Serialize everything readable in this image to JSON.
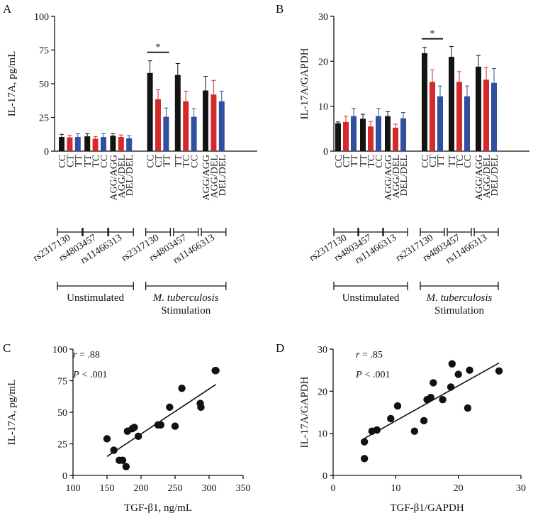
{
  "colors": {
    "black": "#141414",
    "red": "#d42a2a",
    "blue": "#2f4f9f",
    "axis": "#111111"
  },
  "chart_data": [
    {
      "panel": "A",
      "type": "bar",
      "ylabel": "IL-17A, pg/mL",
      "ylim": [
        0,
        100
      ],
      "yticks": [
        0,
        25,
        50,
        75,
        100
      ],
      "categories": [
        "CC",
        "CT",
        "TT",
        "TT",
        "TC",
        "CC",
        "AGG/AGG",
        "AGG/DEL",
        "DEL/DEL",
        "CC",
        "CT",
        "TT",
        "TT",
        "TC",
        "CC",
        "AGG/AGG",
        "AGG/DEL",
        "DEL/DEL"
      ],
      "bar_colors": [
        "black",
        "red",
        "blue",
        "black",
        "red",
        "blue",
        "black",
        "red",
        "blue",
        "black",
        "red",
        "blue",
        "black",
        "red",
        "blue",
        "black",
        "red",
        "blue"
      ],
      "values": [
        10.5,
        10.2,
        10.5,
        11,
        9.2,
        10.5,
        11.5,
        10.5,
        9.5,
        58,
        38.5,
        25.5,
        56.5,
        37,
        25.5,
        45,
        42,
        37
      ],
      "errors": [
        2,
        1.5,
        2.5,
        2,
        1.5,
        2.5,
        1.5,
        1.5,
        2,
        9,
        7,
        6.5,
        8.5,
        7.5,
        6,
        10.5,
        10.5,
        7.5
      ],
      "significance": {
        "text": "*",
        "from": 9,
        "to": 11
      },
      "snp_groups": [
        "rs2317130",
        "rs4803457",
        "rs11466313",
        "rs2317130",
        "rs4803457",
        "rs11466313"
      ],
      "conditions": [
        {
          "label": "Unstimulated"
        },
        {
          "label_italic": "M. tuberculosis",
          "label": "Stimulation"
        }
      ]
    },
    {
      "panel": "B",
      "type": "bar",
      "ylabel": "IL-17A/GAPDH",
      "ylim": [
        0,
        30
      ],
      "yticks": [
        0,
        10,
        20,
        30
      ],
      "categories": [
        "CC",
        "CT",
        "TT",
        "TT",
        "TC",
        "CC",
        "AGG/AGG",
        "AGG/DEL",
        "DEL/DEL",
        "CC",
        "CT",
        "TT",
        "TT",
        "TC",
        "CC",
        "AGG/AGG",
        "AGG/DEL",
        "DEL/DEL"
      ],
      "bar_colors": [
        "black",
        "red",
        "blue",
        "black",
        "red",
        "blue",
        "black",
        "red",
        "blue",
        "black",
        "red",
        "blue",
        "black",
        "red",
        "blue",
        "black",
        "red",
        "blue"
      ],
      "values": [
        6.2,
        6.5,
        7.8,
        7.2,
        5.5,
        7.8,
        7.8,
        5.2,
        7.3,
        21.8,
        15.4,
        12.2,
        21,
        15.4,
        12.2,
        18.8,
        15.9,
        15.2
      ],
      "errors": [
        0.3,
        1.3,
        1.7,
        1.0,
        1.1,
        1.7,
        1.0,
        0.8,
        1.3,
        1.3,
        2.7,
        2.3,
        2.3,
        2.3,
        2.3,
        2.5,
        2.7,
        3.2
      ],
      "significance": {
        "text": "*",
        "from": 9,
        "to": 11
      },
      "snp_groups": [
        "rs2317130",
        "rs4803457",
        "rs11466313",
        "rs2317130",
        "rs4803457",
        "rs11466313"
      ],
      "conditions": [
        {
          "label": "Unstimulated"
        },
        {
          "label_italic": "M. tuberculosis",
          "label": "Stimulation"
        }
      ]
    },
    {
      "panel": "C",
      "type": "scatter",
      "xlabel": "TGF-β1, ng/mL",
      "ylabel": "IL-17A, pg/mL",
      "xlim": [
        100,
        350
      ],
      "ylim": [
        0,
        100
      ],
      "xticks": [
        100,
        150,
        200,
        250,
        300,
        350
      ],
      "yticks": [
        0,
        25,
        50,
        75,
        100
      ],
      "x": [
        150,
        160,
        168,
        173,
        178,
        180,
        187,
        190,
        196,
        225,
        229,
        242,
        250,
        260,
        287,
        288,
        309,
        310
      ],
      "y": [
        29,
        20,
        12,
        12,
        7,
        35,
        37,
        38,
        31,
        40,
        40,
        54,
        39,
        69,
        57,
        54,
        83,
        83
      ],
      "fit": {
        "x": [
          150,
          310
        ],
        "y": [
          15,
          72
        ]
      },
      "stats": {
        "r_label": "r",
        "r_value": "= .88",
        "p_label": "P",
        "p_value": "< .001"
      }
    },
    {
      "panel": "D",
      "type": "scatter",
      "xlabel": "TGF-β1/GAPDH",
      "ylabel": "IL-17A/GAPDH",
      "xlim": [
        0,
        30
      ],
      "ylim": [
        0,
        30
      ],
      "xticks": [
        0,
        10,
        20,
        30
      ],
      "yticks": [
        0,
        10,
        20,
        30
      ],
      "x": [
        5,
        5,
        6.2,
        7,
        9.2,
        10.3,
        13,
        14.5,
        15,
        15.6,
        16,
        17.5,
        18.8,
        19,
        20,
        21.5,
        21.8,
        26.5
      ],
      "y": [
        4,
        8,
        10.5,
        10.8,
        13.5,
        16.5,
        10.5,
        13,
        18,
        18.5,
        22,
        18,
        21,
        26.5,
        24,
        16,
        25,
        24.8
      ],
      "fit": {
        "x": [
          5,
          26.5
        ],
        "y": [
          8.8,
          26.7
        ]
      },
      "stats": {
        "r_label": "r",
        "r_value": "= .85",
        "p_label": "P",
        "p_value": "< .001"
      }
    }
  ]
}
